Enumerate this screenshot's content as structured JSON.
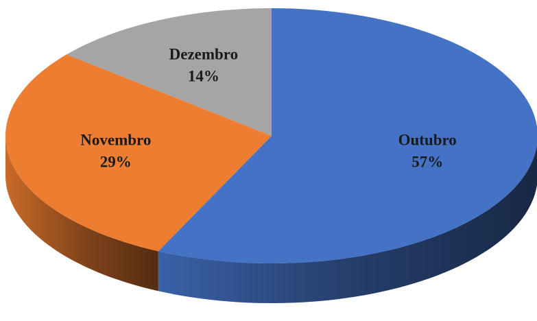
{
  "chart_data": {
    "type": "pie",
    "categories": [
      "Outubro",
      "Novembro",
      "Dezembro"
    ],
    "values": [
      57,
      29,
      14
    ],
    "value_labels": [
      "57%",
      "29%",
      "14%"
    ],
    "colors": [
      "#4472c4",
      "#ed7d31",
      "#a5a5a5"
    ]
  }
}
